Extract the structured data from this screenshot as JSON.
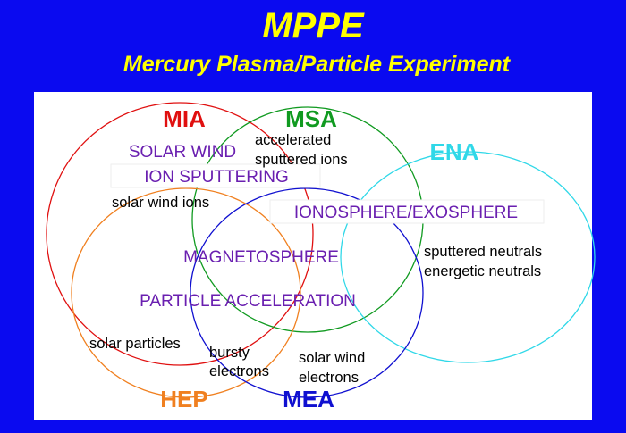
{
  "title": "MPPE",
  "subtitle": "Mercury Plasma/Particle Experiment",
  "sets": [
    "MIA",
    "MSA",
    "ENA",
    "HEP",
    "MEA"
  ],
  "topics": [
    "SOLAR WIND",
    "ION SPUTTERING",
    "IONOSPHERE/EXOSPHERE",
    "MAGNETOSPHERE",
    "PARTICLE ACCELERATION"
  ],
  "notes": [
    "accelerated",
    "sputtered ions",
    "solar wind ions",
    "sputtered neutrals",
    "energetic neutrals",
    "solar particles",
    "bursty",
    "electrons",
    "solar wind",
    "electrons"
  ]
}
